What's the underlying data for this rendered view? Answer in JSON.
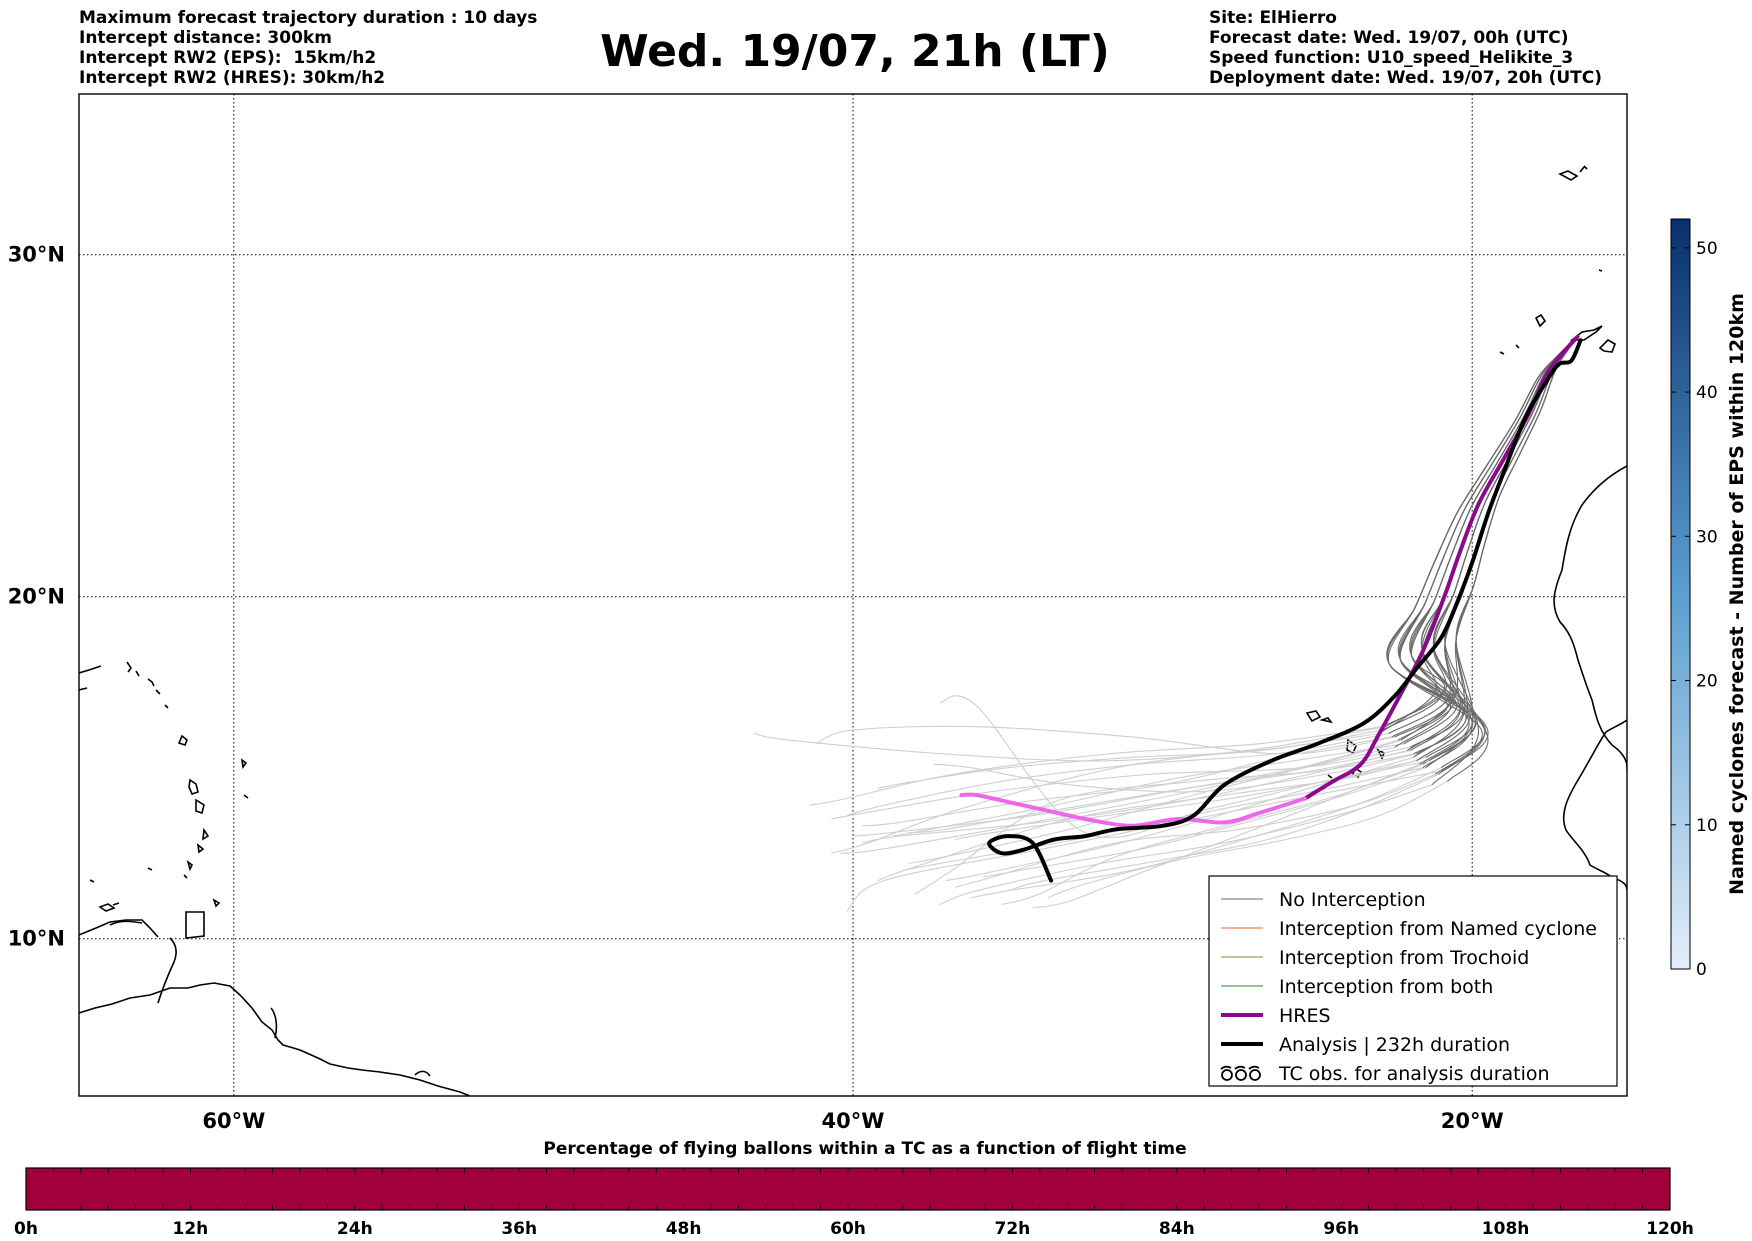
{
  "header": {
    "left_lines": [
      "Maximum forecast trajectory duration : 10 days",
      "Intercept distance: 300km",
      "Intercept RW2 (EPS):  15km/h2",
      "Intercept RW2 (HRES): 30km/h2"
    ],
    "title": "Wed. 19/07, 21h (LT)",
    "right_lines": [
      "Site: ElHierro",
      "Forecast date: Wed. 19/07, 00h (UTC)",
      "Speed function: U10_speed_Helikite_3",
      "Deployment date: Wed. 19/07, 20h (UTC)"
    ]
  },
  "map": {
    "lon_range": [
      -65,
      -15
    ],
    "lat_range": [
      5.4,
      34.7
    ],
    "lon_ticks": [
      {
        "value": -60,
        "label": "60°W"
      },
      {
        "value": -40,
        "label": "40°W"
      },
      {
        "value": -20,
        "label": "20°W"
      }
    ],
    "lat_ticks": [
      {
        "value": 30,
        "label": "30°N"
      },
      {
        "value": 20,
        "label": "20°N"
      },
      {
        "value": 10,
        "label": "10°N"
      }
    ],
    "colors": {
      "no_interception": "#6b6b6b",
      "no_interception_late": "#cfcfcf",
      "named_cyclone": "#e8652b",
      "trochoid": "#8a8a2a",
      "both": "#2a8a2a",
      "hres": "#8b0a8b",
      "hres_late": "#ee66ee",
      "analysis": "#000000"
    },
    "hres_track": [
      [
        -16.6,
        27.6
      ],
      [
        -17.1,
        27.1
      ],
      [
        -17.6,
        26.5
      ],
      [
        -18.2,
        25.3
      ],
      [
        -19.0,
        24.0
      ],
      [
        -19.8,
        22.7
      ],
      [
        -20.4,
        21.3
      ],
      [
        -20.9,
        20.0
      ],
      [
        -21.6,
        18.4
      ],
      [
        -22.4,
        17.0
      ],
      [
        -23.0,
        16.0
      ],
      [
        -23.6,
        15.1
      ],
      [
        -24.5,
        14.6
      ],
      [
        -25.4,
        14.1
      ],
      [
        -26.8,
        13.7
      ],
      [
        -28.0,
        13.4
      ],
      [
        -29.5,
        13.5
      ],
      [
        -31.0,
        13.3
      ],
      [
        -32.5,
        13.5
      ],
      [
        -33.5,
        13.7
      ],
      [
        -35.0,
        14.0
      ],
      [
        -36.0,
        14.2
      ],
      [
        -36.5,
        14.2
      ]
    ],
    "analysis_track": [
      [
        -16.5,
        27.5
      ],
      [
        -16.8,
        26.9
      ],
      [
        -17.2,
        26.8
      ],
      [
        -17.6,
        26.3
      ],
      [
        -18.3,
        25.2
      ],
      [
        -19.0,
        23.6
      ],
      [
        -19.5,
        22.4
      ],
      [
        -20.0,
        21.0
      ],
      [
        -20.5,
        19.8
      ],
      [
        -21.0,
        18.8
      ],
      [
        -21.8,
        17.9
      ],
      [
        -22.5,
        17.1
      ],
      [
        -23.5,
        16.3
      ],
      [
        -25.0,
        15.7
      ],
      [
        -26.5,
        15.2
      ],
      [
        -28.0,
        14.5
      ],
      [
        -29.0,
        13.6
      ],
      [
        -30.0,
        13.3
      ],
      [
        -31.5,
        13.2
      ],
      [
        -32.5,
        13.0
      ],
      [
        -33.5,
        12.9
      ],
      [
        -34.5,
        12.6
      ],
      [
        -35.2,
        12.5
      ],
      [
        -35.6,
        12.8
      ],
      [
        -35.0,
        13.0
      ],
      [
        -34.2,
        12.8
      ],
      [
        -33.6,
        11.7
      ]
    ],
    "eps_tracks": [
      {
        "stops": [
          [
            -20.0,
            16.4
          ],
          [
            -21.5,
            15.3
          ],
          [
            -24.0,
            14.7
          ],
          [
            -28.0,
            14.2
          ],
          [
            -33.0,
            13.5
          ],
          [
            -38.0,
            12.1
          ]
        ],
        "end_lat": 11.7
      },
      {
        "stops": [
          [
            -20.8,
            16.8
          ],
          [
            -22.5,
            15.9
          ],
          [
            -26.0,
            15.4
          ],
          [
            -31.0,
            15.9
          ],
          [
            -36.0,
            16.2
          ],
          [
            -40.0,
            16.1
          ]
        ],
        "end_lat": 15.7
      },
      {
        "stops": [
          [
            -19.5,
            16.1
          ],
          [
            -21.0,
            14.9
          ],
          [
            -24.5,
            14.3
          ],
          [
            -29.0,
            13.5
          ],
          [
            -34.0,
            12.6
          ],
          [
            -39.0,
            11.7
          ]
        ],
        "end_lat": 10.8
      },
      {
        "stops": [
          [
            -21.2,
            17.2
          ],
          [
            -23.0,
            16.0
          ],
          [
            -27.0,
            15.5
          ],
          [
            -32.0,
            15.2
          ],
          [
            -37.0,
            15.4
          ],
          [
            -42.0,
            15.8
          ]
        ],
        "end_lat": 16.0
      },
      {
        "stops": [
          [
            -20.3,
            16.6
          ],
          [
            -22.0,
            15.6
          ],
          [
            -25.5,
            15.0
          ],
          [
            -30.5,
            14.8
          ],
          [
            -35.5,
            14.3
          ],
          [
            -39.5,
            13.7
          ]
        ],
        "end_lat": 13.5
      },
      {
        "stops": [
          [
            -19.8,
            16.0
          ],
          [
            -21.3,
            14.5
          ],
          [
            -24.0,
            13.7
          ],
          [
            -28.0,
            12.8
          ],
          [
            -32.0,
            12.2
          ],
          [
            -36.0,
            11.4
          ]
        ],
        "end_lat": 11.0
      },
      {
        "stops": [
          [
            -20.6,
            17.0
          ],
          [
            -22.3,
            15.8
          ],
          [
            -25.0,
            15.1
          ],
          [
            -29.0,
            14.2
          ],
          [
            -33.0,
            13.2
          ],
          [
            -37.0,
            12.4
          ]
        ],
        "end_lat": 12.2
      },
      {
        "stops": [
          [
            -20.1,
            16.5
          ],
          [
            -21.8,
            15.2
          ],
          [
            -24.8,
            14.6
          ],
          [
            -28.5,
            13.8
          ],
          [
            -32.5,
            13.1
          ],
          [
            -36.0,
            16.8
          ]
        ],
        "end_lat": 16.9
      },
      {
        "stops": [
          [
            -19.6,
            16.2
          ],
          [
            -21.0,
            15.0
          ],
          [
            -23.5,
            14.0
          ],
          [
            -27.0,
            13.0
          ],
          [
            -31.0,
            12.0
          ],
          [
            -35.0,
            11.4
          ]
        ],
        "end_lat": 11.2
      },
      {
        "stops": [
          [
            -20.9,
            17.3
          ],
          [
            -22.8,
            16.2
          ],
          [
            -26.5,
            15.6
          ],
          [
            -31.5,
            15.0
          ],
          [
            -36.5,
            13.8
          ],
          [
            -39.5,
            12.8
          ]
        ],
        "end_lat": 12.5
      },
      {
        "stops": [
          [
            -20.4,
            16.7
          ],
          [
            -22.1,
            15.5
          ],
          [
            -25.3,
            14.8
          ],
          [
            -29.5,
            14.0
          ],
          [
            -34.0,
            13.4
          ],
          [
            -38.5,
            13.0
          ]
        ],
        "end_lat": 12.8
      },
      {
        "stops": [
          [
            -19.9,
            16.3
          ],
          [
            -21.6,
            15.1
          ],
          [
            -24.3,
            14.2
          ],
          [
            -28.0,
            13.3
          ],
          [
            -31.5,
            12.4
          ],
          [
            -34.0,
            11.3
          ]
        ],
        "end_lat": 11.0
      },
      {
        "stops": [
          [
            -20.7,
            16.9
          ],
          [
            -22.6,
            15.9
          ],
          [
            -26.2,
            15.3
          ],
          [
            -30.0,
            14.5
          ],
          [
            -34.5,
            14.0
          ],
          [
            -38.5,
            13.4
          ]
        ],
        "end_lat": 13.3
      },
      {
        "stops": [
          [
            -20.2,
            16.4
          ],
          [
            -21.9,
            15.4
          ],
          [
            -25.0,
            14.9
          ],
          [
            -29.0,
            14.6
          ],
          [
            -33.5,
            14.0
          ],
          [
            -36.8,
            12.0
          ]
        ],
        "end_lat": 11.3
      },
      {
        "stops": [
          [
            -19.7,
            16.1
          ],
          [
            -21.2,
            14.8
          ],
          [
            -23.8,
            13.9
          ],
          [
            -27.5,
            13.2
          ],
          [
            -31.5,
            12.8
          ],
          [
            -35.5,
            11.8
          ]
        ],
        "end_lat": 11.5
      },
      {
        "stops": [
          [
            -21.0,
            17.1
          ],
          [
            -22.9,
            16.1
          ],
          [
            -26.8,
            15.5
          ],
          [
            -31.0,
            15.3
          ],
          [
            -35.0,
            15.0
          ],
          [
            -38.0,
            14.6
          ]
        ],
        "end_lat": 14.4
      },
      {
        "stops": [
          [
            -20.5,
            16.8
          ],
          [
            -22.2,
            15.7
          ],
          [
            -25.8,
            15.2
          ],
          [
            -29.5,
            14.7
          ],
          [
            -33.5,
            13.9
          ],
          [
            -37.5,
            13.2
          ]
        ],
        "end_lat": 13.0
      },
      {
        "stops": [
          [
            -19.5,
            15.9
          ],
          [
            -20.8,
            14.6
          ],
          [
            -23.0,
            13.6
          ],
          [
            -26.0,
            12.9
          ],
          [
            -29.5,
            12.3
          ],
          [
            -32.5,
            11.6
          ]
        ],
        "end_lat": 11.2
      },
      {
        "stops": [
          [
            -20.0,
            16.2
          ],
          [
            -21.6,
            15.0
          ],
          [
            -24.6,
            14.4
          ],
          [
            -28.6,
            13.7
          ],
          [
            -32.8,
            12.9
          ],
          [
            -37.2,
            12.2
          ]
        ],
        "end_lat": 12.0
      },
      {
        "stops": [
          [
            -20.8,
            17.0
          ],
          [
            -22.7,
            16.0
          ],
          [
            -26.4,
            15.4
          ],
          [
            -30.8,
            15.1
          ],
          [
            -35.2,
            14.6
          ],
          [
            -39.0,
            13.9
          ]
        ],
        "end_lat": 13.6
      },
      {
        "stops": [
          [
            -20.3,
            16.5
          ],
          [
            -21.9,
            15.3
          ],
          [
            -24.9,
            14.5
          ],
          [
            -28.2,
            13.6
          ],
          [
            -31.8,
            12.7
          ],
          [
            -35.8,
            11.9
          ]
        ],
        "end_lat": 11.7
      },
      {
        "stops": [
          [
            -19.9,
            16.4
          ],
          [
            -21.4,
            15.2
          ],
          [
            -24.2,
            14.7
          ],
          [
            -27.8,
            14.1
          ],
          [
            -31.8,
            13.6
          ],
          [
            -35.5,
            13.1
          ]
        ],
        "end_lat": 12.9
      },
      {
        "stops": [
          [
            -20.6,
            16.9
          ],
          [
            -22.4,
            15.8
          ],
          [
            -25.6,
            15.0
          ],
          [
            -29.8,
            14.3
          ],
          [
            -34.2,
            13.6
          ],
          [
            -38.8,
            13.1
          ]
        ],
        "end_lat": 13.0
      },
      {
        "stops": [
          [
            -20.1,
            16.3
          ],
          [
            -21.7,
            15.1
          ],
          [
            -24.5,
            14.1
          ],
          [
            -27.6,
            13.0
          ],
          [
            -30.5,
            12.0
          ],
          [
            -33.0,
            11.1
          ]
        ],
        "end_lat": 10.9
      },
      {
        "stops": [
          [
            -19.6,
            16.1
          ],
          [
            -21.1,
            14.8
          ],
          [
            -23.6,
            13.8
          ],
          [
            -26.6,
            12.9
          ],
          [
            -30.0,
            12.3
          ],
          [
            -33.8,
            11.7
          ]
        ],
        "end_lat": 11.4
      },
      {
        "stops": [
          [
            -20.9,
            17.2
          ],
          [
            -22.9,
            16.2
          ],
          [
            -26.9,
            15.7
          ],
          [
            -31.8,
            15.4
          ],
          [
            -36.8,
            14.8
          ],
          [
            -40.2,
            14.1
          ]
        ],
        "end_lat": 13.9
      },
      {
        "stops": [
          [
            -20.4,
            16.6
          ],
          [
            -22.0,
            15.5
          ],
          [
            -25.2,
            14.9
          ],
          [
            -29.2,
            14.4
          ],
          [
            -33.2,
            13.8
          ],
          [
            -37.0,
            13.2
          ]
        ],
        "end_lat": 13.1
      },
      {
        "stops": [
          [
            -20.0,
            16.3
          ],
          [
            -21.5,
            15.0
          ],
          [
            -24.1,
            14.2
          ],
          [
            -27.3,
            13.4
          ],
          [
            -30.8,
            12.6
          ],
          [
            -34.6,
            12.0
          ]
        ],
        "end_lat": 11.8
      },
      {
        "stops": [
          [
            -20.7,
            16.8
          ],
          [
            -22.5,
            15.6
          ],
          [
            -25.9,
            14.9
          ],
          [
            -30.2,
            14.1
          ],
          [
            -34.8,
            13.3
          ],
          [
            -39.2,
            12.6
          ]
        ],
        "end_lat": 12.5
      },
      {
        "stops": [
          [
            -20.2,
            16.5
          ],
          [
            -21.8,
            15.4
          ],
          [
            -24.8,
            14.8
          ],
          [
            -28.8,
            14.3
          ],
          [
            -33.0,
            14.5
          ],
          [
            -36.2,
            15.0
          ]
        ],
        "end_lat": 15.1
      }
    ]
  },
  "legend": {
    "items": [
      {
        "label": "No Interception",
        "color": "#6b6b6b",
        "weight": 1
      },
      {
        "label": "Interception from Named cyclone",
        "color": "#e8652b",
        "weight": 1
      },
      {
        "label": "Interception from Trochoid",
        "color": "#8a8a2a",
        "weight": 1
      },
      {
        "label": "Interception from both",
        "color": "#2a8a2a",
        "weight": 1
      },
      {
        "label": "HRES",
        "color": "#8b0a8b",
        "weight": 4
      },
      {
        "label": "Analysis | 232h duration",
        "color": "#000000",
        "weight": 4
      },
      {
        "label": "TC obs. for analysis duration",
        "color": "#000000",
        "weight": 0
      }
    ]
  },
  "colorbar_right": {
    "label": "Named cyclones forecast - Number of EPS within 120km",
    "min": 0,
    "max": 52,
    "ticks": [
      0,
      10,
      20,
      30,
      40,
      50
    ],
    "color_low": "#e3eef9",
    "color_high": "#08306b"
  },
  "time_bar": {
    "title": "Percentage of flying ballons within a TC as a function of flight time",
    "color": "#a0003c",
    "tick_labels": [
      "0h",
      "12h",
      "24h",
      "36h",
      "48h",
      "60h",
      "72h",
      "84h",
      "96h",
      "108h",
      "120h"
    ]
  }
}
